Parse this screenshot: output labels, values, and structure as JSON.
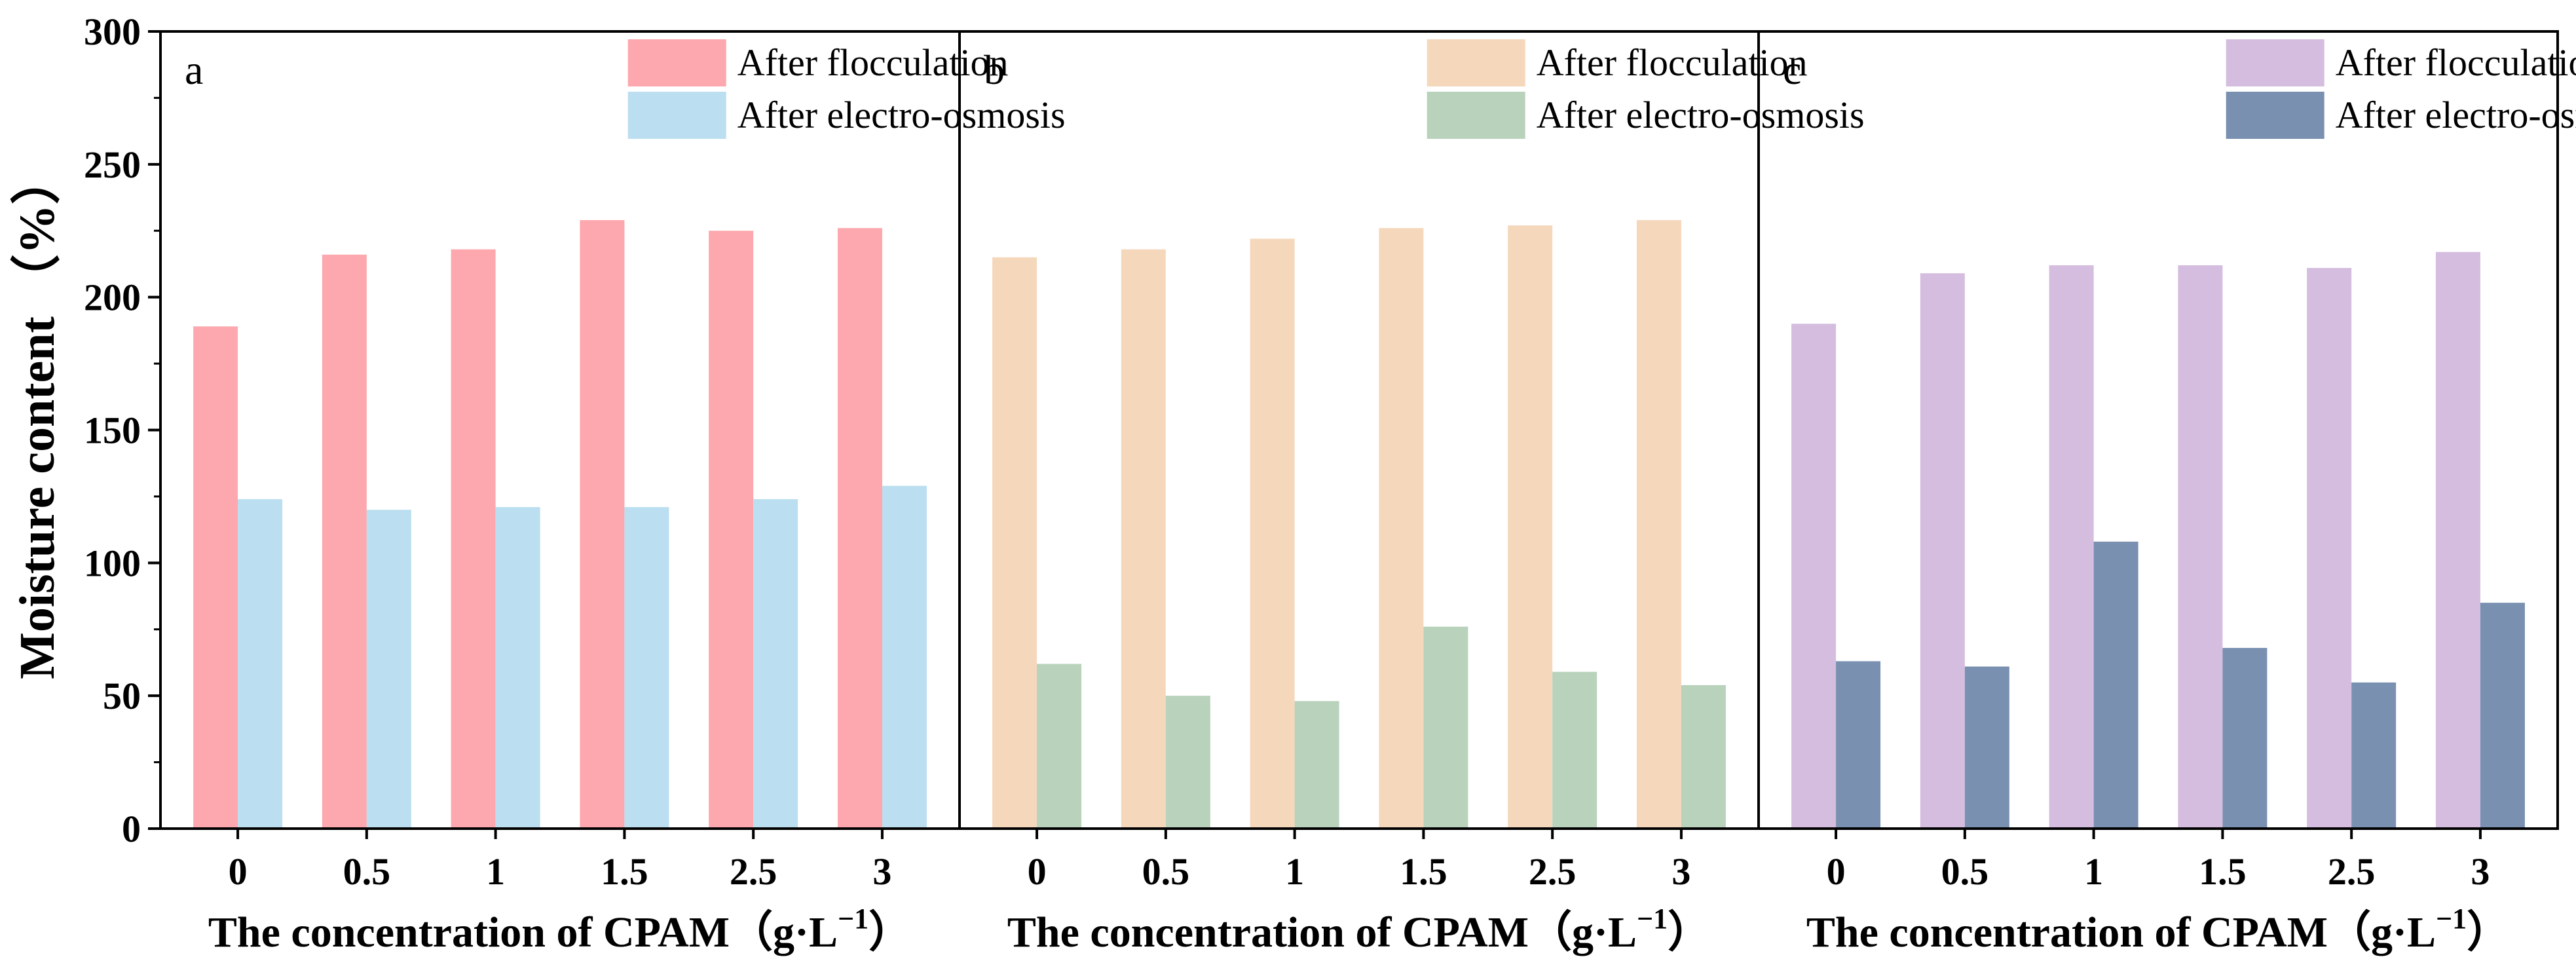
{
  "chart_data": {
    "type": "bar",
    "ylabel": "Moisture content （%）",
    "ylim": [
      0,
      300
    ],
    "yticks": [
      "0",
      "50",
      "100",
      "150",
      "200",
      "250",
      "300"
    ],
    "grid": false,
    "panels": [
      {
        "label": "a",
        "xlabel": "The concentration of CPAM（g·L",
        "xlabel_sup": "−1",
        "xlabel_end": "）",
        "categories": [
          "0",
          "0.5",
          "1",
          "1.5",
          "2.5",
          "3"
        ],
        "legend_position": "top-right",
        "series": [
          {
            "name": "After flocculation",
            "color": "#fca8ae",
            "values": [
              189,
              216,
              218,
              229,
              225,
              226
            ]
          },
          {
            "name": "After electro-osmosis",
            "color": "#bbdff0",
            "values": [
              124,
              120,
              121,
              121,
              124,
              129
            ]
          }
        ]
      },
      {
        "label": "b",
        "xlabel": "The concentration of CPAM（g·L",
        "xlabel_sup": "−1",
        "xlabel_end": "）",
        "categories": [
          "0",
          "0.5",
          "1",
          "1.5",
          "2.5",
          "3"
        ],
        "legend_position": "top-right",
        "series": [
          {
            "name": "After flocculation",
            "color": "#f5d7bc",
            "values": [
              215,
              218,
              222,
              226,
              227,
              229
            ]
          },
          {
            "name": "After electro-osmosis",
            "color": "#b8d2bc",
            "values": [
              62,
              50,
              48,
              76,
              59,
              54
            ]
          }
        ]
      },
      {
        "label": "c",
        "xlabel": "The concentration of CPAM（g·L",
        "xlabel_sup": "−1",
        "xlabel_end": "）",
        "categories": [
          "0",
          "0.5",
          "1",
          "1.5",
          "2.5",
          "3"
        ],
        "legend_position": "top-right",
        "series": [
          {
            "name": "After flocculation",
            "color": "#d5bddf",
            "values": [
              190,
              209,
              212,
              212,
              211,
              217
            ]
          },
          {
            "name": "After electro-osmosis",
            "color": "#7990b1",
            "values": [
              63,
              61,
              108,
              68,
              55,
              85
            ]
          }
        ]
      }
    ]
  }
}
